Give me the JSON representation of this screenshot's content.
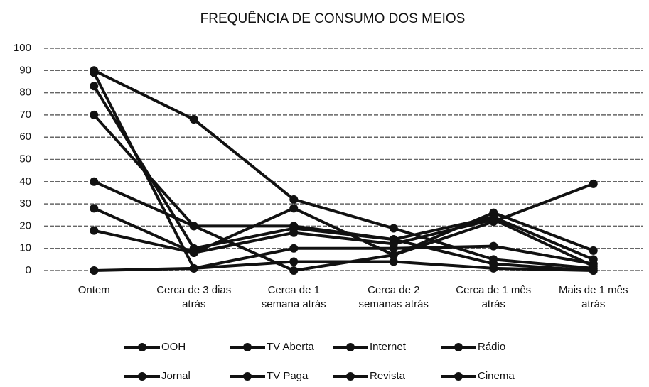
{
  "chart_data": {
    "type": "line",
    "title": "FREQUÊNCIA DE CONSUMO DOS MEIOS",
    "categories": [
      "Ontem",
      "Cerca de 3 dias atrás",
      "Cerca de 1 semana atrás",
      "Cerca de 2 semanas atrás",
      "Cerca de 1 mês atrás",
      "Mais de 1 mês atrás"
    ],
    "series": [
      {
        "name": "OOH",
        "color": "#111111",
        "values": [
          0,
          1,
          4,
          4,
          1,
          0
        ]
      },
      {
        "name": "TV Aberta",
        "color": "#111111",
        "values": [
          90,
          68,
          32,
          19,
          5,
          1
        ]
      },
      {
        "name": "Internet",
        "color": "#111111",
        "values": [
          89,
          1,
          10,
          10,
          11,
          3
        ]
      },
      {
        "name": "Rádio",
        "color": "#111111",
        "values": [
          83,
          10,
          19,
          14,
          3,
          0
        ]
      },
      {
        "name": "Jornal",
        "color": "#111111",
        "values": [
          70,
          20,
          0,
          7,
          26,
          9
        ]
      },
      {
        "name": "TV Paga",
        "color": "#111111",
        "values": [
          40,
          20,
          20,
          14,
          24,
          5
        ]
      },
      {
        "name": "Revista",
        "color": "#111111",
        "values": [
          28,
          8,
          17,
          12,
          23,
          2
        ]
      },
      {
        "name": "Cinema",
        "color": "#111111",
        "values": [
          18,
          8,
          28,
          7,
          22,
          39
        ]
      }
    ],
    "ylim": [
      0,
      100
    ],
    "yticks": [
      0,
      10,
      20,
      30,
      40,
      50,
      60,
      70,
      80,
      90,
      100
    ],
    "grid": true,
    "legend": "bottom"
  }
}
